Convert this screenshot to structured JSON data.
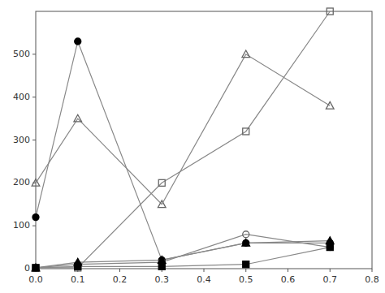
{
  "chart_data": {
    "type": "line",
    "x": [
      0.0,
      0.1,
      0.3,
      0.5,
      0.7
    ],
    "xlim": [
      0.0,
      0.8
    ],
    "ylim": [
      0,
      600
    ],
    "xticks": [
      {
        "value": 0.0,
        "label": "0.0"
      },
      0.1,
      0.2,
      0.3,
      0.4,
      0.5,
      0.6,
      0.7,
      0.8
    ],
    "yticks": [
      0,
      100,
      200,
      300,
      400,
      500
    ],
    "grid": false,
    "color": "#888888",
    "series": [
      {
        "color": "#666666",
        "marker": "triangle-open",
        "values": [
          200,
          350,
          150,
          500,
          380
        ]
      },
      {
        "color": "#666666",
        "marker": "square-open",
        "values": [
          2,
          2,
          200,
          320,
          600
        ]
      },
      {
        "color": "#000000",
        "marker": "circle-filled",
        "values": [
          120,
          530,
          20,
          60,
          60
        ]
      },
      {
        "color": "#666666",
        "marker": "circle-open",
        "values": [
          2,
          10,
          15,
          80,
          50
        ]
      },
      {
        "color": "#000000",
        "marker": "triangle-filled",
        "values": [
          2,
          15,
          20,
          60,
          65
        ]
      },
      {
        "color": "#000000",
        "marker": "square-filled",
        "values": [
          2,
          5,
          5,
          10,
          50
        ]
      }
    ]
  }
}
